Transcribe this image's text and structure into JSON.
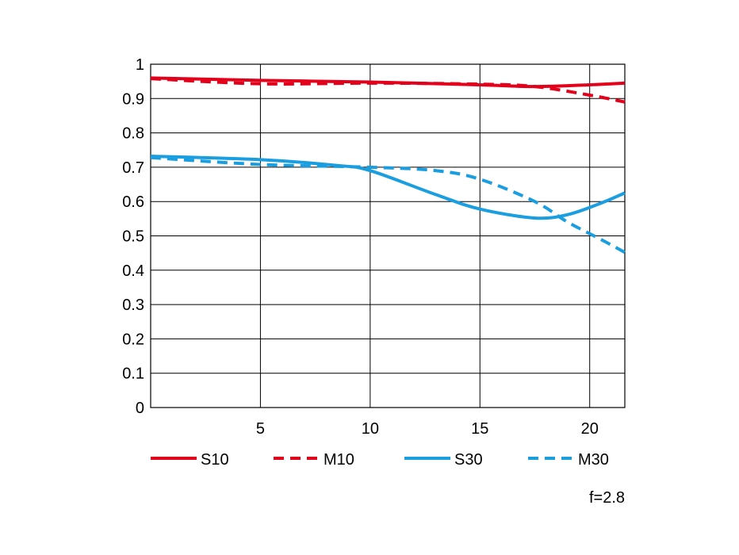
{
  "chart_data": {
    "type": "line",
    "title": "",
    "xlabel": "",
    "ylabel": "",
    "xlim": [
      0,
      21.6
    ],
    "ylim": [
      0,
      1
    ],
    "x_ticks": [
      5,
      10,
      15,
      20
    ],
    "y_ticks": [
      0,
      0.1,
      0.2,
      0.3,
      0.4,
      0.5,
      0.6,
      0.7,
      0.8,
      0.9,
      1
    ],
    "x_tick_labels": [
      "5",
      "10",
      "15",
      "20"
    ],
    "y_tick_labels": [
      "0",
      "0.1",
      "0.2",
      "0.3",
      "0.4",
      "0.5",
      "0.6",
      "0.7",
      "0.8",
      "0.9",
      "1"
    ],
    "grid": true,
    "legend_position": "bottom",
    "annotation": "f=2.8",
    "series": [
      {
        "name": "S10",
        "color": "#e3001b",
        "style": "solid",
        "points": [
          [
            0,
            0.96
          ],
          [
            5,
            0.953
          ],
          [
            10,
            0.948
          ],
          [
            15,
            0.94
          ],
          [
            17.5,
            0.935
          ],
          [
            20,
            0.94
          ],
          [
            21.6,
            0.945
          ]
        ]
      },
      {
        "name": "M10",
        "color": "#e3001b",
        "style": "dashed",
        "points": [
          [
            0,
            0.958
          ],
          [
            5,
            0.943
          ],
          [
            10,
            0.945
          ],
          [
            15,
            0.942
          ],
          [
            17.5,
            0.935
          ],
          [
            20,
            0.91
          ],
          [
            21.6,
            0.89
          ]
        ]
      },
      {
        "name": "S30",
        "color": "#1a9ee0",
        "style": "solid",
        "points": [
          [
            0,
            0.732
          ],
          [
            5,
            0.722
          ],
          [
            8.5,
            0.705
          ],
          [
            10,
            0.69
          ],
          [
            13,
            0.62
          ],
          [
            15,
            0.578
          ],
          [
            17.5,
            0.552
          ],
          [
            19,
            0.562
          ],
          [
            20.5,
            0.595
          ],
          [
            21.6,
            0.625
          ]
        ]
      },
      {
        "name": "M30",
        "color": "#1a9ee0",
        "style": "dashed",
        "points": [
          [
            0,
            0.728
          ],
          [
            5,
            0.708
          ],
          [
            10,
            0.7
          ],
          [
            13,
            0.69
          ],
          [
            15,
            0.665
          ],
          [
            17.5,
            0.6
          ],
          [
            19,
            0.54
          ],
          [
            20.5,
            0.49
          ],
          [
            21.6,
            0.452
          ]
        ]
      }
    ]
  }
}
